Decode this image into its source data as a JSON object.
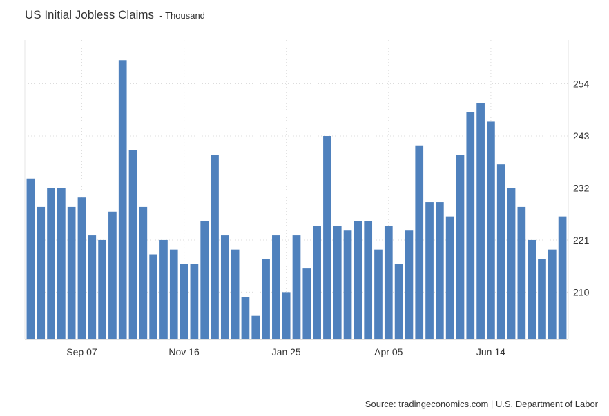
{
  "chart_data": {
    "type": "bar",
    "title": "US Initial Jobless Claims",
    "unit": "Thousand",
    "values": [
      234,
      228,
      232,
      232,
      228,
      230,
      222,
      221,
      227,
      259,
      240,
      228,
      218,
      221,
      219,
      216,
      216,
      225,
      239,
      222,
      219,
      209,
      205,
      217,
      222,
      210,
      222,
      215,
      224,
      243,
      224,
      223,
      225,
      225,
      219,
      224,
      216,
      223,
      241,
      229,
      229,
      226,
      239,
      248,
      250,
      246,
      237,
      232,
      228,
      221,
      217,
      219,
      226
    ],
    "x_ticks": [
      {
        "label": "Sep 07",
        "index": 5
      },
      {
        "label": "Nov 16",
        "index": 15
      },
      {
        "label": "Jan 25",
        "index": 25
      },
      {
        "label": "Apr 05",
        "index": 35
      },
      {
        "label": "Jun 14",
        "index": 45
      }
    ],
    "y_ticks": [
      210,
      221,
      232,
      243,
      254
    ],
    "ylim": [
      200,
      263
    ],
    "y_axis_side": "right",
    "grid": true,
    "bar_color": "#4f81bd"
  },
  "source": "Source: tradingeconomics.com | U.S. Department of Labor"
}
